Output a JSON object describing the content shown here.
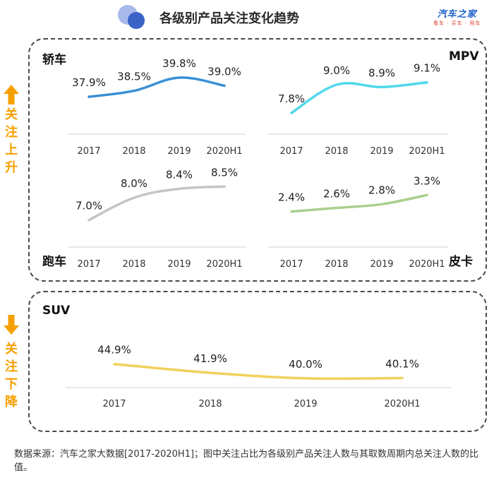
{
  "header": {
    "title": "各级别产品关注变化趋势",
    "brand": "汽车之家",
    "brand_sub": "看车 · 买车 · 用车"
  },
  "side_labels": {
    "up": "关注上升",
    "down": "关注下降"
  },
  "footnote": "数据来源：汽车之家大数据[2017-2020H1]；图中关注占比为各级别产品关注人数与其取数周期内总关注人数的比值。",
  "colors": {
    "sedan": "#3a8fd6",
    "mpv": "#4fd8ec",
    "sports": "#c4c4c4",
    "pickup": "#a8d08d",
    "suv": "#f2d15c",
    "accent": "#f5a000",
    "logo_dark": "#3b62c6",
    "logo_light": "#a9b9ec"
  },
  "chart_data": [
    {
      "type": "line",
      "id": "sedan",
      "title": "轿车",
      "categories": [
        "2017",
        "2018",
        "2019",
        "2020H1"
      ],
      "values": [
        37.9,
        38.5,
        39.8,
        39.0
      ],
      "labels": [
        "37.9%",
        "38.5%",
        "39.8%",
        "39.0%"
      ],
      "ylim": [
        37.0,
        40.5
      ]
    },
    {
      "type": "line",
      "id": "mpv",
      "title": "MPV",
      "categories": [
        "2017",
        "2018",
        "2019",
        "2020H1"
      ],
      "values": [
        7.8,
        9.0,
        8.9,
        9.1
      ],
      "labels": [
        "7.8%",
        "9.0%",
        "8.9%",
        "9.1%"
      ],
      "ylim": [
        7.5,
        9.3
      ]
    },
    {
      "type": "line",
      "id": "sports",
      "title": "跑车",
      "categories": [
        "2017",
        "2018",
        "2019",
        "2020H1"
      ],
      "values": [
        7.0,
        8.0,
        8.4,
        8.5
      ],
      "labels": [
        "7.0%",
        "8.0%",
        "8.4%",
        "8.5%"
      ],
      "ylim": [
        6.8,
        8.7
      ]
    },
    {
      "type": "line",
      "id": "pickup",
      "title": "皮卡",
      "categories": [
        "2017",
        "2018",
        "2019",
        "2020H1"
      ],
      "values": [
        2.4,
        2.6,
        2.8,
        3.3
      ],
      "labels": [
        "2.4%",
        "2.6%",
        "2.8%",
        "3.3%"
      ],
      "ylim": [
        2.0,
        4.2
      ]
    },
    {
      "type": "line",
      "id": "suv",
      "title": "SUV",
      "categories": [
        "2017",
        "2018",
        "2019",
        "2020H1"
      ],
      "values": [
        44.9,
        41.9,
        40.0,
        40.1
      ],
      "labels": [
        "44.9%",
        "41.9%",
        "40.0%",
        "40.1%"
      ],
      "ylim": [
        39.0,
        56.0
      ]
    }
  ]
}
